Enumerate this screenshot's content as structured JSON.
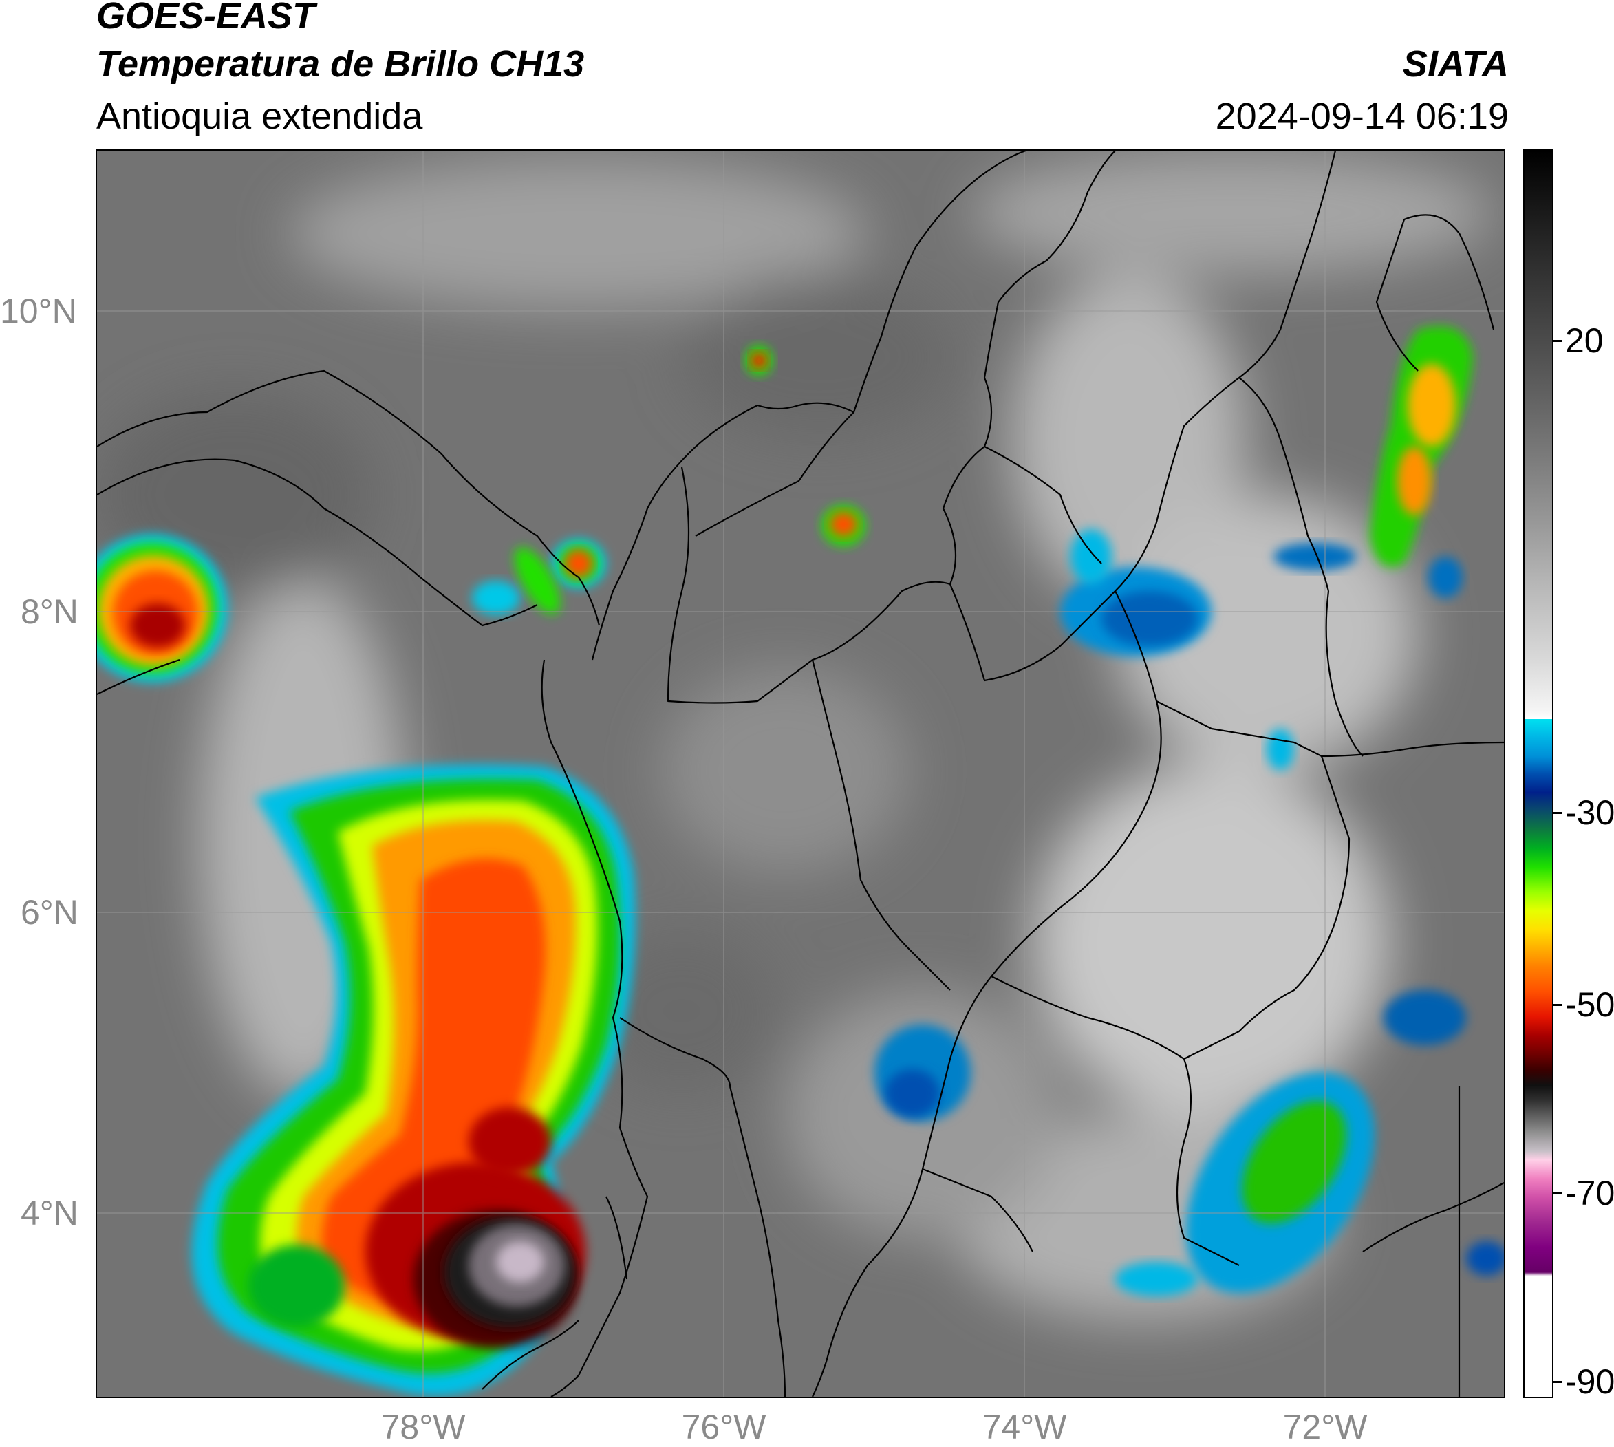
{
  "header": {
    "satellite": "GOES-EAST",
    "product": "Temperatura de Brillo CH13",
    "region": "Antioquia extendida",
    "organization": "SIATA",
    "timestamp": "2024-09-14 06:19"
  },
  "axes": {
    "lat_labels": [
      "10°N",
      "8°N",
      "6°N",
      "4°N"
    ],
    "lon_labels": [
      "78°W",
      "76°W",
      "74°W",
      "72°W"
    ]
  },
  "colorbar": {
    "labels": [
      "20",
      "-30",
      "-50",
      "-70",
      "-90"
    ],
    "colors": {
      "cold_black": "#000000",
      "cyan": "#00e1f0",
      "blue": "#0050b0",
      "green": "#20e000",
      "yellow": "#e6ff00",
      "orange": "#ff8000",
      "red": "#e61500",
      "magenta": "#d050a8"
    }
  }
}
